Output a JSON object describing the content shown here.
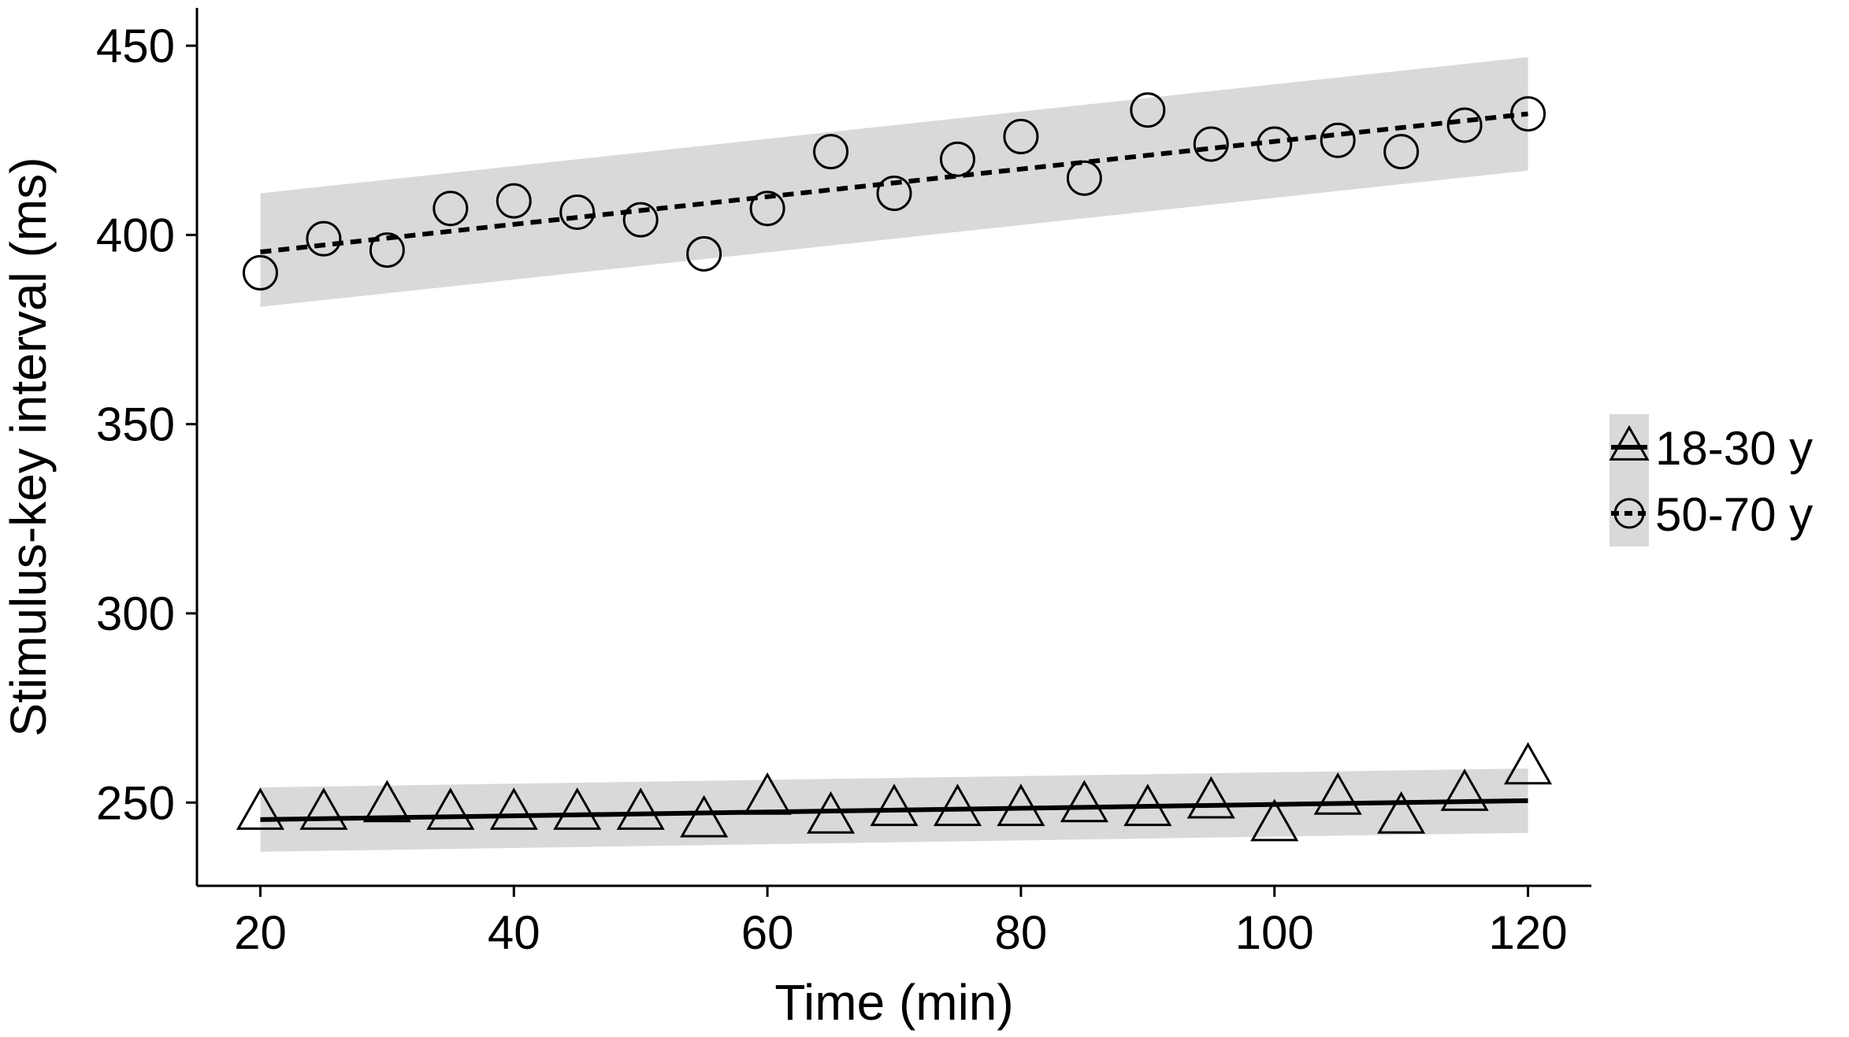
{
  "chart_data": {
    "type": "scatter",
    "title": "",
    "xlabel": "Time (min)",
    "ylabel": "Stimulus-key interval (ms)",
    "xlim": [
      15,
      125
    ],
    "ylim": [
      228,
      460
    ],
    "x_ticks": [
      20,
      40,
      60,
      80,
      100,
      120
    ],
    "y_ticks": [
      250,
      300,
      350,
      400,
      450
    ],
    "grid": false,
    "legend_position": "right",
    "colors": {
      "ink": "#000000",
      "ribbon": "#d9d9d9",
      "marker_fill": "#ffffff"
    },
    "series": [
      {
        "name": "18-30 y",
        "marker": "triangle",
        "line_style": "solid",
        "x": [
          20,
          25,
          30,
          35,
          40,
          45,
          50,
          55,
          60,
          65,
          70,
          75,
          80,
          85,
          90,
          95,
          100,
          105,
          110,
          115,
          120
        ],
        "y": [
          247,
          247,
          249,
          247,
          247,
          247,
          247,
          245,
          251,
          246,
          248,
          248,
          248,
          249,
          248,
          250,
          244,
          251,
          246,
          252,
          259
        ],
        "fit": {
          "x": [
            20,
            120
          ],
          "y": [
            245.5,
            250.5
          ]
        },
        "ribbon": {
          "x": [
            20,
            120
          ],
          "upper": [
            254,
            259
          ],
          "lower": [
            237,
            242
          ]
        }
      },
      {
        "name": "50-70 y",
        "marker": "circle",
        "line_style": "dashed",
        "x": [
          20,
          25,
          30,
          35,
          40,
          45,
          50,
          55,
          60,
          65,
          70,
          75,
          80,
          85,
          90,
          95,
          100,
          105,
          110,
          115,
          120
        ],
        "y": [
          390,
          399,
          396,
          407,
          409,
          406,
          404,
          395,
          407,
          422,
          411,
          420,
          426,
          415,
          433,
          424,
          424,
          425,
          422,
          429,
          432
        ],
        "fit": {
          "x": [
            20,
            120
          ],
          "y": [
            395.5,
            432
          ]
        },
        "ribbon": {
          "x": [
            20,
            120
          ],
          "upper": [
            411,
            447
          ],
          "lower": [
            381,
            417
          ]
        }
      }
    ]
  }
}
